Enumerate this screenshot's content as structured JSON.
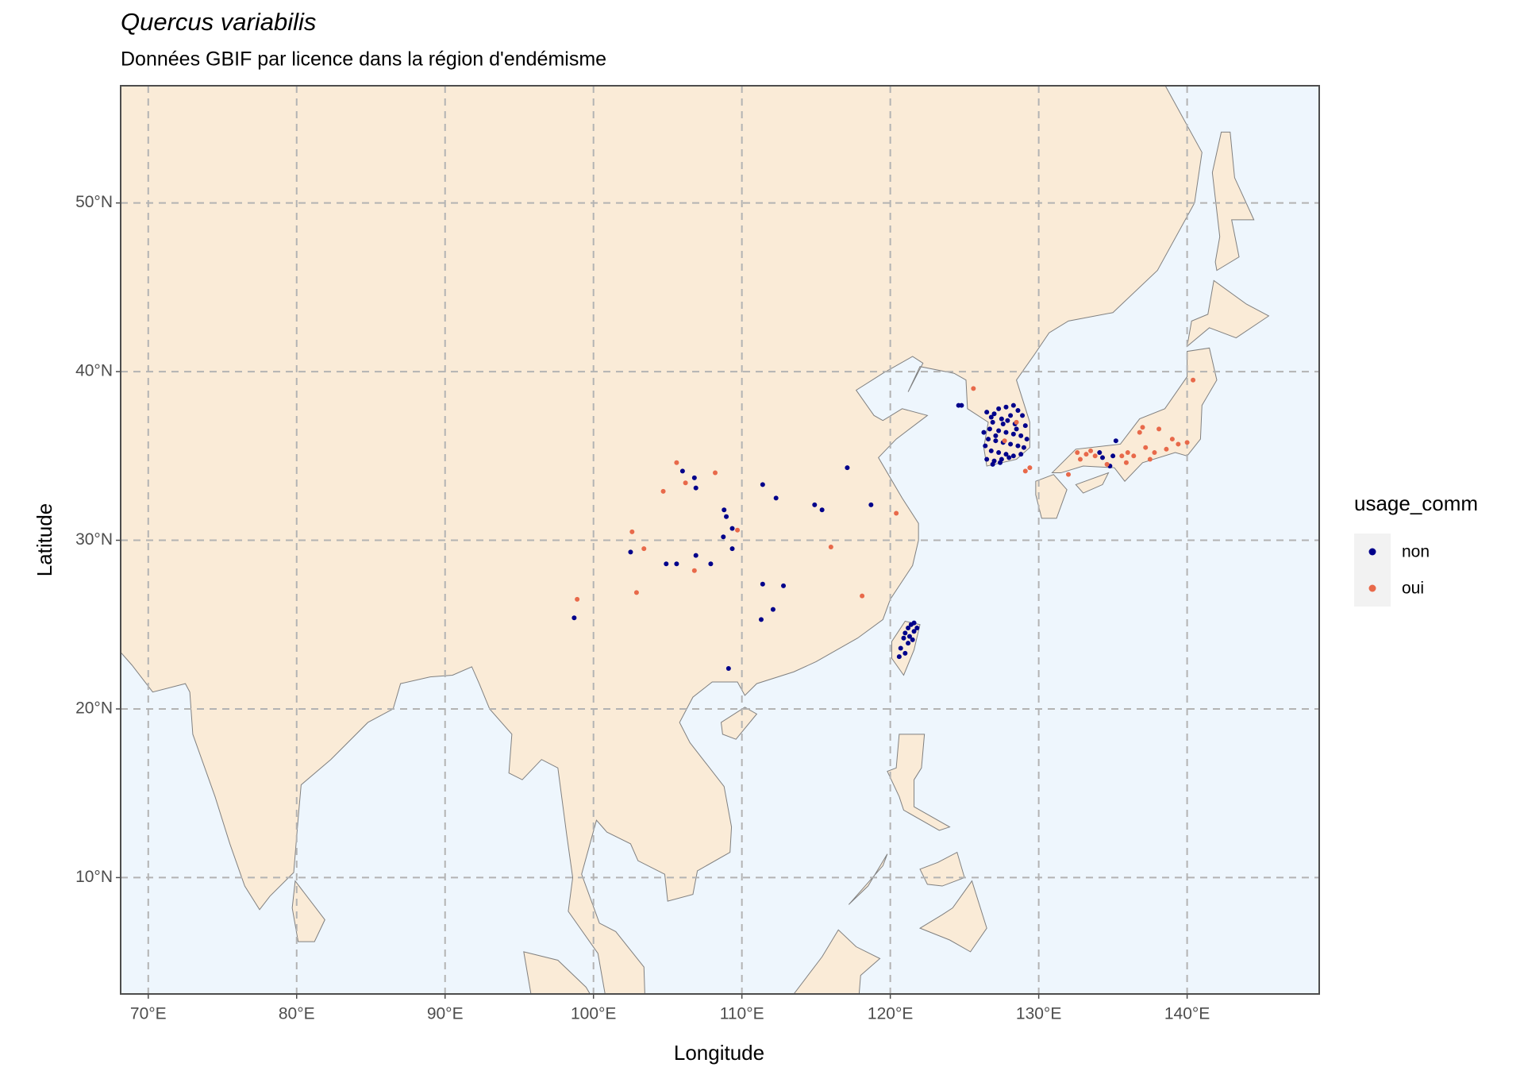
{
  "chart_data": {
    "type": "scatter",
    "title": "Quercus variabilis",
    "subtitle": "Données GBIF par licence dans la région d'endémisme",
    "x_label": "Longitude",
    "y_label": "Latitude",
    "legend_title": "usage_comm",
    "legend_position": "right",
    "grid": true,
    "xlim": [
      68.14,
      148.9
    ],
    "ylim": [
      3.1,
      56.95
    ],
    "xticks": [
      {
        "value": 70,
        "label": "70°E"
      },
      {
        "value": 80,
        "label": "80°E"
      },
      {
        "value": 90,
        "label": "90°E"
      },
      {
        "value": 100,
        "label": "100°E"
      },
      {
        "value": 110,
        "label": "110°E"
      },
      {
        "value": 120,
        "label": "120°E"
      },
      {
        "value": 130,
        "label": "130°E"
      },
      {
        "value": 140,
        "label": "140°E"
      }
    ],
    "yticks": [
      {
        "value": 10,
        "label": "10°N"
      },
      {
        "value": 20,
        "label": "20°N"
      },
      {
        "value": 30,
        "label": "30°N"
      },
      {
        "value": 40,
        "label": "40°N"
      },
      {
        "value": 50,
        "label": "50°N"
      }
    ],
    "series": [
      {
        "name": "non",
        "color": "#00008b",
        "x": [
          106.0,
          106.8,
          106.9,
          111.4,
          112.3,
          117.1,
          108.8,
          108.95,
          109.35,
          108.75,
          102.5,
          104.9,
          105.6,
          106.9,
          107.9,
          109.35,
          111.4,
          112.8,
          112.1,
          111.3,
          114.9,
          115.4,
          118.7,
          109.1,
          98.7,
          124.6,
          124.8,
          126.5,
          127.0,
          127.3,
          127.8,
          128.3,
          128.6,
          128.9,
          127.5,
          126.9,
          127.9,
          128.4,
          129.1,
          126.7,
          127.3,
          127.8,
          128.3,
          128.8,
          129.2,
          126.6,
          127.1,
          127.6,
          128.1,
          128.6,
          129.0,
          126.8,
          127.3,
          127.8,
          128.3,
          128.8,
          126.5,
          127.0,
          127.5,
          128.0,
          126.4,
          126.3,
          126.8,
          127.6,
          128.1,
          127.1,
          128.5,
          126.9,
          127.4,
          121.4,
          121.2,
          121.6,
          121.0,
          121.3,
          121.5,
          120.9,
          121.2,
          120.7,
          121.0,
          120.6,
          121.6,
          121.8,
          135.0,
          134.3,
          134.8,
          135.2,
          134.1
        ],
        "y": [
          34.1,
          33.7,
          33.1,
          33.3,
          32.5,
          34.3,
          31.8,
          31.4,
          30.7,
          30.2,
          29.3,
          28.6,
          28.6,
          29.1,
          28.6,
          29.5,
          27.4,
          27.3,
          25.9,
          25.3,
          32.1,
          31.8,
          32.1,
          22.4,
          25.4,
          38.0,
          38.0,
          37.6,
          37.5,
          37.8,
          37.9,
          38.0,
          37.7,
          37.4,
          37.2,
          37.0,
          37.1,
          36.9,
          36.8,
          36.6,
          36.5,
          36.4,
          36.3,
          36.2,
          36.0,
          36.0,
          35.9,
          35.8,
          35.7,
          35.6,
          35.5,
          35.3,
          35.2,
          35.1,
          35.0,
          35.1,
          34.8,
          34.7,
          34.8,
          34.9,
          35.6,
          36.4,
          37.3,
          36.9,
          37.4,
          36.2,
          36.6,
          34.5,
          34.6,
          25.0,
          24.8,
          24.6,
          24.5,
          24.3,
          24.1,
          24.2,
          23.9,
          23.6,
          23.3,
          23.1,
          25.1,
          24.8,
          35.0,
          34.9,
          34.4,
          35.9,
          35.2
        ]
      },
      {
        "name": "oui",
        "color": "#e8694a",
        "x": [
          105.6,
          106.2,
          108.2,
          104.7,
          102.6,
          103.4,
          109.7,
          106.8,
          102.9,
          116.0,
          118.1,
          120.4,
          98.9,
          128.5,
          127.7,
          125.6,
          129.4,
          129.1,
          140.4,
          137.0,
          138.1,
          136.8,
          139.0,
          140.0,
          133.2,
          133.8,
          136.0,
          137.2,
          137.8,
          132.0,
          132.8,
          134.6,
          135.6,
          132.6,
          133.5,
          136.4,
          138.6,
          139.4,
          135.9,
          137.5
        ],
        "y": [
          34.6,
          33.4,
          34.0,
          32.9,
          30.5,
          29.5,
          30.6,
          28.2,
          26.9,
          29.6,
          26.7,
          31.6,
          26.5,
          37.0,
          35.9,
          39.0,
          34.3,
          34.1,
          39.5,
          36.7,
          36.6,
          36.4,
          36.0,
          35.8,
          35.1,
          35.0,
          35.2,
          35.5,
          35.2,
          33.9,
          34.8,
          34.5,
          35.0,
          35.2,
          35.3,
          35.0,
          35.4,
          35.7,
          34.6,
          34.8
        ]
      }
    ]
  }
}
